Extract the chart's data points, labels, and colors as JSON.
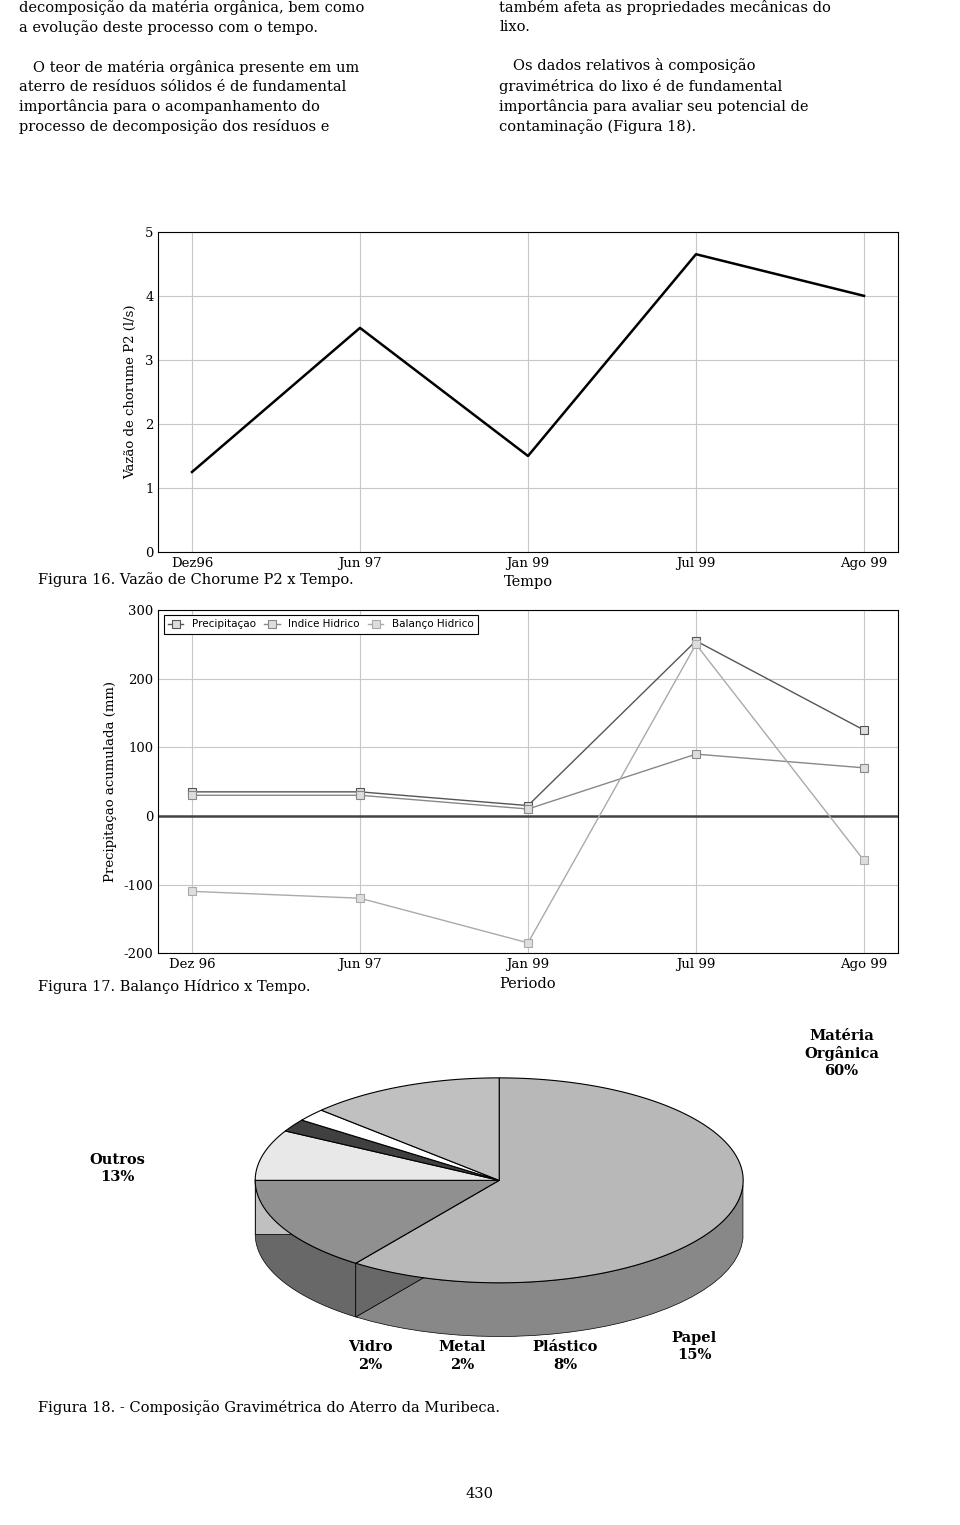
{
  "text_left": "decomposição da matéria orgânica, bem como\na evolução deste processo com o tempo.\n\n   O teor de matéria orgânica presente em um\naterro de resíduos sólidos é de fundamental\nimportância para o acompanhamento do\nprocesso de decomposição dos resíduos e",
  "text_right": "também afeta as propriedades mecânicas do\nlixo.\n\n   Os dados relativos à composição\ngravimétrica do lixo é de fundamental\nimportância para avaliar seu potencial de\ncontaminação (Figura 18).",
  "fig16": {
    "xlabel": "Tempo",
    "ylabel": "Vazão de chorume P2 (l/s)",
    "x_labels": [
      "Dez96",
      "Jun 97",
      "Jan 99",
      "Jul 99",
      "Ago 99"
    ],
    "y_values": [
      1.25,
      3.5,
      1.5,
      4.65,
      4.0
    ],
    "ylim": [
      0,
      5
    ],
    "yticks": [
      0,
      1,
      2,
      3,
      4,
      5
    ],
    "caption": "Figura 16. Vazão de Chorume P2 x Tempo."
  },
  "fig17": {
    "xlabel": "Periodo",
    "ylabel": "Precipitaçao acumulada (mm)",
    "x_labels": [
      "Dez 96",
      "Jun 97",
      "Jan 99",
      "Jul 99",
      "Ago 99"
    ],
    "series_precipitacao": [
      35,
      35,
      15,
      255,
      125
    ],
    "series_indice": [
      30,
      30,
      10,
      90,
      70
    ],
    "series_balanco": [
      -110,
      -120,
      -185,
      250,
      -65
    ],
    "ylim": [
      -200,
      300
    ],
    "yticks": [
      -200,
      -100,
      0,
      100,
      200,
      300
    ],
    "legend_labels": [
      "Precipitaçao",
      "Indice Hidrico",
      "Balanço Hidrico"
    ],
    "caption": "Figura 17. Balanço Hídrico x Tempo."
  },
  "fig18": {
    "labels": [
      "Matéria\nOrgânica",
      "Papel",
      "Plástico",
      "Metal",
      "Vidro",
      "Outros"
    ],
    "label_pcts": [
      "60%",
      "15%",
      "8%",
      "2%",
      "2%",
      "13%"
    ],
    "sizes": [
      60,
      15,
      8,
      2,
      2,
      13
    ],
    "face_colors": [
      "#b8b8b8",
      "#909090",
      "#e8e8e8",
      "#404040",
      "#ffffff",
      "#c0c0c0"
    ],
    "side_colors": [
      "#888888",
      "#686868",
      "#c0c0c0",
      "#202020",
      "#d0d0d0",
      "#989898"
    ],
    "startangle": 90,
    "caption": "Figura 18. - Composição Gravimétrica do Aterro da Muribeca."
  },
  "page_number": "430",
  "background_color": "#ffffff"
}
